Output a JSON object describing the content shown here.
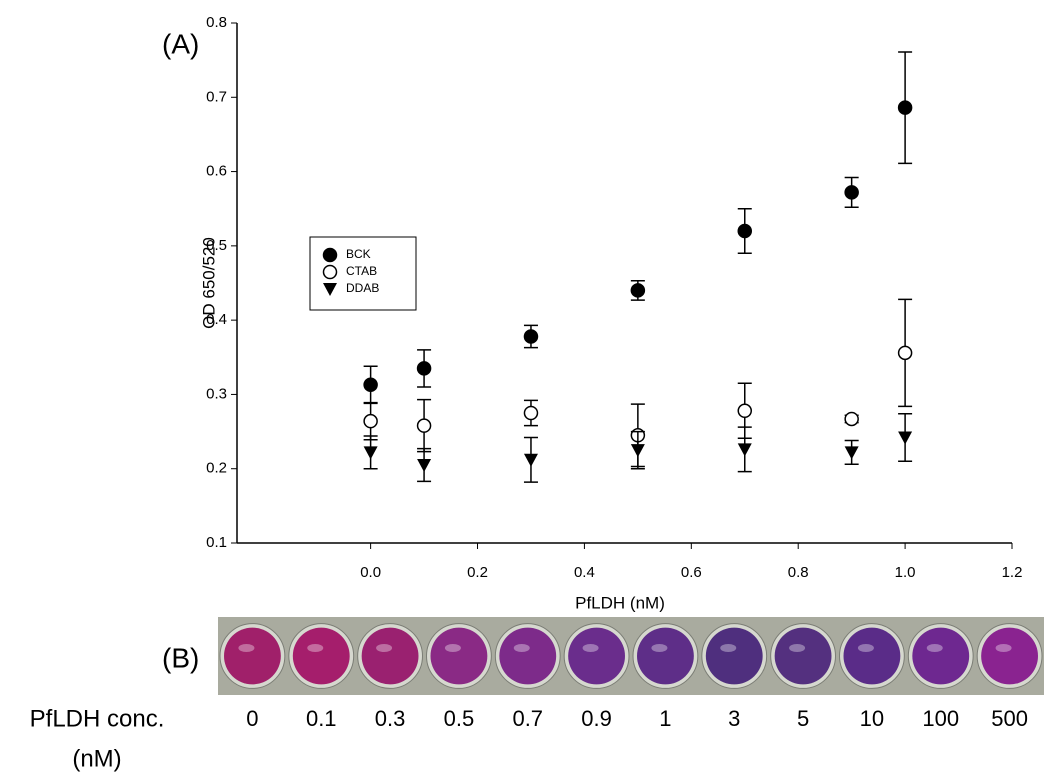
{
  "chart_data": {
    "type": "scatter",
    "panel_label": "(A)",
    "x_label": "PfLDH (nM)",
    "y_label": "OD 650/520",
    "xlim": [
      -0.25,
      1.2
    ],
    "ylim": [
      0.1,
      0.8
    ],
    "xticks": [
      {
        "value": 0,
        "label": "0.0"
      },
      0.2,
      0.4,
      0.6,
      0.8,
      {
        "value": 1,
        "label": "1.0"
      },
      1.2
    ],
    "yticks": [
      0.1,
      0.2,
      0.3,
      0.4,
      0.5,
      0.6,
      0.7,
      0.8
    ],
    "legend_position": "left",
    "series": [
      {
        "name": "BCK",
        "color": "#000000",
        "marker": "filled-circle",
        "x": [
          0,
          0.1,
          0.3,
          0.5,
          0.7,
          0.9,
          1
        ],
        "values": [
          0.313,
          0.335,
          0.378,
          0.44,
          0.52,
          0.572,
          0.686
        ],
        "errors": [
          0.025,
          0.025,
          0.015,
          0.013,
          0.03,
          0.02,
          0.075
        ]
      },
      {
        "name": "CTAB",
        "color": "#000000",
        "marker": "open-circle",
        "x": [
          0,
          0.1,
          0.3,
          0.5,
          0.7,
          0.9,
          1
        ],
        "values": [
          0.264,
          0.258,
          0.275,
          0.245,
          0.278,
          0.267,
          0.356
        ],
        "errors": [
          0.025,
          0.035,
          0.017,
          0.042,
          0.037,
          0.005,
          0.072
        ]
      },
      {
        "name": "DDAB",
        "color": "#000000",
        "marker": "down-triangle",
        "x": [
          0,
          0.1,
          0.3,
          0.5,
          0.7,
          0.9,
          1
        ],
        "values": [
          0.222,
          0.205,
          0.212,
          0.225,
          0.226,
          0.222,
          0.242
        ],
        "errors": [
          0.022,
          0.022,
          0.03,
          0.025,
          0.03,
          0.016,
          0.032
        ]
      }
    ]
  },
  "panel_b": {
    "panel_label": "(B)",
    "axis_label": "PfLDH conc.",
    "unit": "(nM)",
    "concentrations": [
      "0",
      "0.1",
      "0.3",
      "0.5",
      "0.7",
      "0.9",
      "1",
      "3",
      "5",
      "10",
      "100",
      "500"
    ],
    "well_colors": [
      "#a0206a",
      "#a51e6c",
      "#9a2170",
      "#8a2a85",
      "#7d2b8a",
      "#6a2d8c",
      "#5e2e88",
      "#4f2f7e",
      "#54307f",
      "#5a2c88",
      "#6e2890",
      "#8a2390"
    ]
  }
}
